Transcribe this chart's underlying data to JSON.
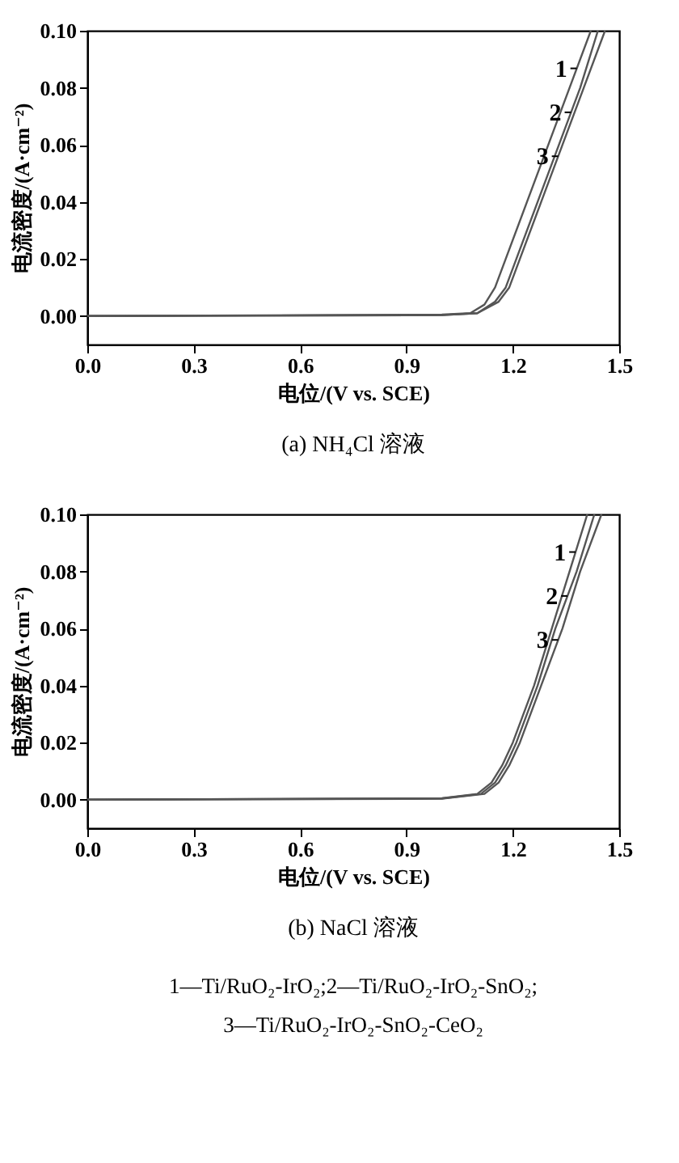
{
  "chart_data": [
    {
      "type": "line",
      "title": "(a) NH₄Cl 溶液",
      "xlabel": "电位/(V vs. SCE)",
      "ylabel": "电流密度/(A·cm⁻²)",
      "xlim": [
        0,
        1.5
      ],
      "ylim": [
        -0.01,
        0.1
      ],
      "xticks": [
        {
          "value": 0,
          "label": "0.0"
        },
        {
          "value": 0.3,
          "label": "0.3"
        },
        {
          "value": 0.6,
          "label": "0.6"
        },
        {
          "value": 0.9,
          "label": "0.9"
        },
        {
          "value": 1.2,
          "label": "1.2"
        },
        {
          "value": 1.5,
          "label": "1.5"
        }
      ],
      "yticks": [
        {
          "value": 0,
          "label": "0.00"
        },
        {
          "value": 0.02,
          "label": "0.02"
        },
        {
          "value": 0.04,
          "label": "0.04"
        },
        {
          "value": 0.06,
          "label": "0.06"
        },
        {
          "value": 0.08,
          "label": "0.08"
        },
        {
          "value": 0.1,
          "label": "0.10"
        }
      ],
      "series": [
        {
          "name": "1",
          "color": "#555555",
          "x": [
            0,
            1.0,
            1.08,
            1.12,
            1.15,
            1.18,
            1.24,
            1.3,
            1.36,
            1.42
          ],
          "values": [
            0,
            0.0005,
            0.001,
            0.004,
            0.01,
            0.02,
            0.04,
            0.06,
            0.08,
            0.1
          ]
        },
        {
          "name": "2",
          "color": "#555555",
          "x": [
            0,
            1.0,
            1.1,
            1.15,
            1.18,
            1.21,
            1.27,
            1.33,
            1.39,
            1.44
          ],
          "values": [
            0,
            0.0003,
            0.001,
            0.005,
            0.01,
            0.02,
            0.04,
            0.06,
            0.08,
            0.1
          ]
        },
        {
          "name": "3",
          "color": "#555555",
          "x": [
            0,
            1.0,
            1.1,
            1.16,
            1.19,
            1.22,
            1.28,
            1.34,
            1.4,
            1.46
          ],
          "values": [
            0,
            0.0003,
            0.001,
            0.005,
            0.01,
            0.02,
            0.04,
            0.06,
            0.08,
            0.1
          ]
        }
      ]
    },
    {
      "type": "line",
      "title": "(b) NaCl 溶液",
      "xlabel": "电位/(V vs. SCE)",
      "ylabel": "电流密度/(A·cm⁻²)",
      "xlim": [
        0,
        1.5
      ],
      "ylim": [
        -0.01,
        0.1
      ],
      "xticks": [
        {
          "value": 0,
          "label": "0.0"
        },
        {
          "value": 0.3,
          "label": "0.3"
        },
        {
          "value": 0.6,
          "label": "0.6"
        },
        {
          "value": 0.9,
          "label": "0.9"
        },
        {
          "value": 1.2,
          "label": "1.2"
        },
        {
          "value": 1.5,
          "label": "1.5"
        }
      ],
      "yticks": [
        {
          "value": 0,
          "label": "0.00"
        },
        {
          "value": 0.02,
          "label": "0.02"
        },
        {
          "value": 0.04,
          "label": "0.04"
        },
        {
          "value": 0.06,
          "label": "0.06"
        },
        {
          "value": 0.08,
          "label": "0.08"
        },
        {
          "value": 0.1,
          "label": "0.10"
        }
      ],
      "annotations": [
        "1—Ti/RuO₂-IrO₂;2—Ti/RuO₂-IrO₂-SnO₂;",
        "3—Ti/RuO₂-IrO₂-SnO₂-CeO₂"
      ],
      "series": [
        {
          "name": "1",
          "color": "#555555",
          "x": [
            0,
            1.0,
            1.1,
            1.14,
            1.17,
            1.2,
            1.26,
            1.31,
            1.36,
            1.41
          ],
          "values": [
            0,
            0.0005,
            0.002,
            0.006,
            0.012,
            0.02,
            0.04,
            0.06,
            0.08,
            0.1
          ]
        },
        {
          "name": "2",
          "color": "#555555",
          "x": [
            0,
            1.0,
            1.11,
            1.15,
            1.18,
            1.21,
            1.27,
            1.32,
            1.38,
            1.43
          ],
          "values": [
            0,
            0.0004,
            0.002,
            0.006,
            0.012,
            0.02,
            0.04,
            0.06,
            0.08,
            0.1
          ]
        },
        {
          "name": "3",
          "color": "#555555",
          "x": [
            0,
            1.0,
            1.12,
            1.16,
            1.19,
            1.22,
            1.28,
            1.34,
            1.39,
            1.45
          ],
          "values": [
            0,
            0.0003,
            0.002,
            0.006,
            0.012,
            0.02,
            0.04,
            0.06,
            0.08,
            0.1
          ]
        }
      ]
    }
  ]
}
